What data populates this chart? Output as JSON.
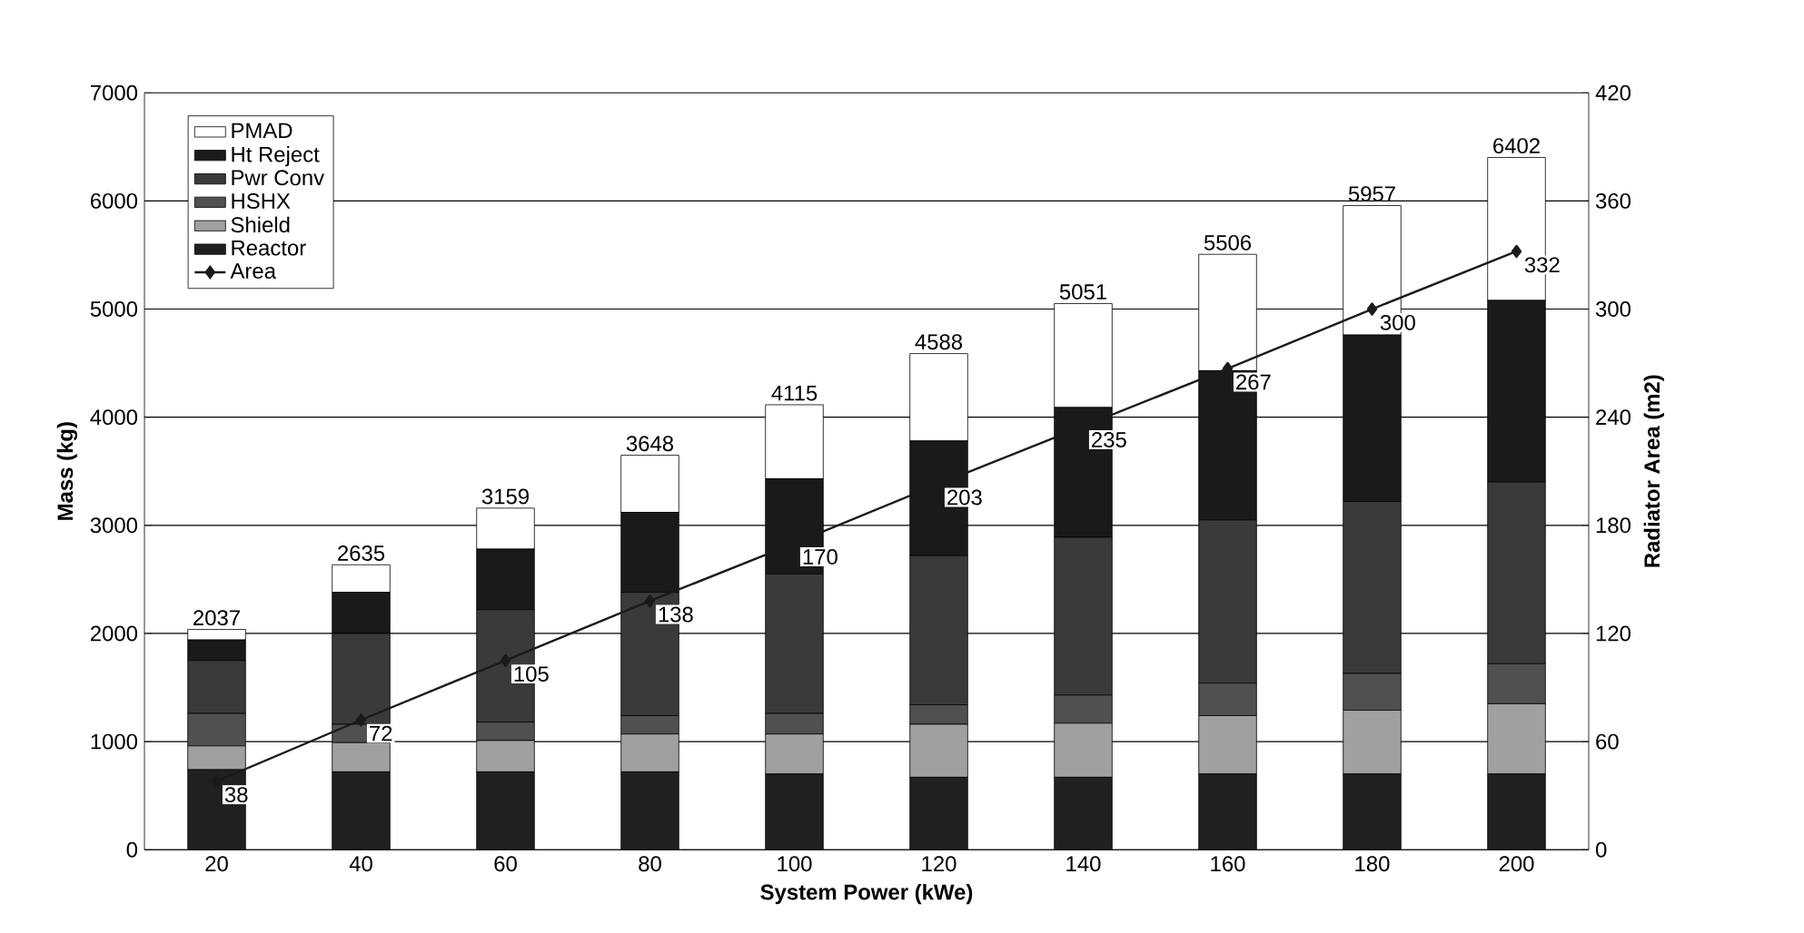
{
  "chart_data": {
    "type": "bar",
    "stacked": true,
    "xlabel": "System Power (kWe)",
    "ylabel": "Mass (kg)",
    "y2label": "Radiator Area (m2)",
    "categories": [
      "20",
      "40",
      "60",
      "80",
      "100",
      "120",
      "140",
      "160",
      "180",
      "200"
    ],
    "series": [
      {
        "name": "Reactor",
        "color": "#202020",
        "values": [
          740,
          720,
          720,
          720,
          700,
          670,
          670,
          700,
          700,
          700
        ]
      },
      {
        "name": "Shield",
        "color": "#a0a0a0",
        "values": [
          220,
          270,
          290,
          350,
          370,
          490,
          500,
          540,
          590,
          650
        ]
      },
      {
        "name": "HSHX",
        "color": "#505050",
        "values": [
          300,
          170,
          170,
          170,
          190,
          180,
          260,
          300,
          340,
          370
        ]
      },
      {
        "name": "Pwr Conv",
        "color": "#3a3a3a",
        "values": [
          490,
          840,
          1040,
          1140,
          1290,
          1380,
          1460,
          1510,
          1590,
          1680
        ]
      },
      {
        "name": "Ht Reject",
        "color": "#1a1a1a",
        "values": [
          190,
          380,
          560,
          740,
          880,
          1060,
          1200,
          1380,
          1540,
          1680
        ]
      },
      {
        "name": "PMAD",
        "color": "#ffffff",
        "values": [
          97,
          255,
          379,
          528,
          685,
          808,
          961,
          1076,
          1197,
          1322
        ]
      },
      {
        "name": "Area",
        "type": "line",
        "axis": "y2",
        "marker": "diamond",
        "color": "#1a1a1a",
        "values": [
          38,
          72,
          105,
          138,
          170,
          203,
          235,
          267,
          300,
          332
        ],
        "value_labels": [
          "38",
          "72",
          "105",
          "138",
          "170",
          "203",
          "235",
          "267",
          "300",
          "332"
        ]
      }
    ],
    "totals": [
      "2037",
      "2635",
      "3159",
      "3648",
      "4115",
      "4588",
      "5051",
      "5506",
      "5957",
      "6402"
    ],
    "ylim": [
      0,
      7000
    ],
    "yticks": [
      0,
      1000,
      2000,
      3000,
      4000,
      5000,
      6000,
      7000
    ],
    "y2lim": [
      0,
      420
    ],
    "y2ticks": [
      0,
      60,
      120,
      180,
      240,
      300,
      360,
      420
    ],
    "grid": "y",
    "legend": "top left"
  }
}
